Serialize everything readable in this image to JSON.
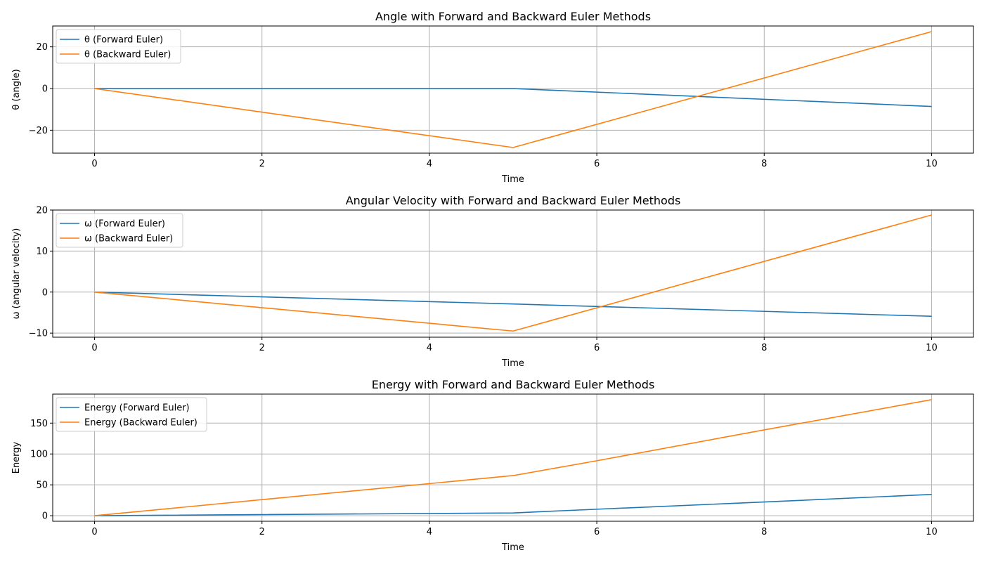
{
  "colors": {
    "forward": "#1f77b4",
    "backward": "#ff7f0e",
    "grid": "#b0b0b0",
    "axis": "#000000",
    "legend_border": "#cccccc"
  },
  "chart_data": [
    {
      "type": "line",
      "title": "Angle with Forward and Backward Euler Methods",
      "xlabel": "Time",
      "ylabel": "θ (angle)",
      "xlim": [
        -0.5,
        10.5
      ],
      "ylim": [
        -31,
        30
      ],
      "xticks": [
        0,
        2,
        4,
        6,
        8,
        10
      ],
      "yticks": [
        -20,
        0,
        20
      ],
      "grid": true,
      "legend": "upper-left",
      "series": [
        {
          "name": "θ (Forward Euler)",
          "color_key": "forward",
          "x": [
            0,
            5,
            10
          ],
          "y": [
            0,
            0,
            -8.6
          ]
        },
        {
          "name": "θ (Backward Euler)",
          "color_key": "backward",
          "x": [
            0,
            5,
            10
          ],
          "y": [
            0,
            -28.3,
            27.3
          ]
        }
      ]
    },
    {
      "type": "line",
      "title": "Angular Velocity with Forward and Backward Euler Methods",
      "xlabel": "Time",
      "ylabel": "ω (angular velocity)",
      "xlim": [
        -0.5,
        10.5
      ],
      "ylim": [
        -11,
        20
      ],
      "xticks": [
        0,
        2,
        4,
        6,
        8,
        10
      ],
      "yticks": [
        -10,
        0,
        10,
        20
      ],
      "grid": true,
      "legend": "upper-left",
      "series": [
        {
          "name": "ω (Forward Euler)",
          "color_key": "forward",
          "x": [
            0,
            5,
            10
          ],
          "y": [
            0,
            -2.9,
            -5.9
          ]
        },
        {
          "name": "ω (Backward Euler)",
          "color_key": "backward",
          "x": [
            0,
            5,
            10
          ],
          "y": [
            0,
            -9.5,
            18.8
          ]
        }
      ]
    },
    {
      "type": "line",
      "title": "Energy with Forward and Backward Euler Methods",
      "xlabel": "Time",
      "ylabel": "Energy",
      "xlim": [
        -0.5,
        10.5
      ],
      "ylim": [
        -9,
        197
      ],
      "xticks": [
        0,
        2,
        4,
        6,
        8,
        10
      ],
      "yticks": [
        0,
        50,
        100,
        150
      ],
      "grid": true,
      "legend": "upper-left",
      "series": [
        {
          "name": "Energy (Forward Euler)",
          "color_key": "forward",
          "x": [
            0,
            5,
            6,
            8,
            10
          ],
          "y": [
            0,
            4.5,
            10.5,
            22.2,
            34.5
          ]
        },
        {
          "name": "Energy (Backward Euler)",
          "color_key": "backward",
          "x": [
            0,
            5,
            6,
            8,
            10
          ],
          "y": [
            0,
            65,
            89,
            139,
            188
          ]
        }
      ]
    }
  ]
}
